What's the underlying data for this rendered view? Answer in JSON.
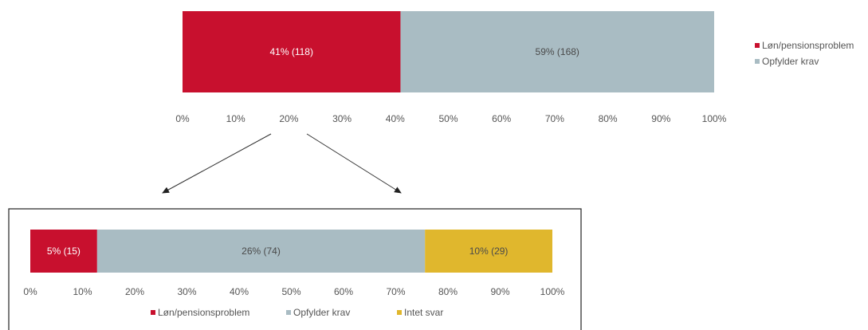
{
  "colors": {
    "red": "#c8102e",
    "gray": "#a9bcc3",
    "gold": "#e0b72d",
    "frame": "#222222",
    "arrow": "#333333"
  },
  "chart_data": [
    {
      "type": "bar",
      "orientation": "horizontal",
      "stacked": true,
      "xlim": [
        0,
        100
      ],
      "tick_labels": [
        "0%",
        "10%",
        "20%",
        "30%",
        "40%",
        "50%",
        "60%",
        "70%",
        "80%",
        "90%",
        "100%"
      ],
      "legend_position": "right",
      "series": [
        {
          "name": "Løn/pensionsproblem",
          "value": 41,
          "label": "41% (118)",
          "color": "#c8102e"
        },
        {
          "name": "Opfylder krav",
          "value": 59,
          "label": "59% (168)",
          "color": "#a9bcc3"
        }
      ]
    },
    {
      "type": "bar",
      "orientation": "horizontal",
      "stacked": true,
      "xlim": [
        0,
        100
      ],
      "tick_labels": [
        "0%",
        "10%",
        "20%",
        "30%",
        "40%",
        "50%",
        "60%",
        "70%",
        "80%",
        "90%",
        "100%"
      ],
      "legend_position": "bottom",
      "series": [
        {
          "name": "Løn/pensionsproblem",
          "value": 12.8,
          "label": "5% (15)",
          "color": "#c8102e"
        },
        {
          "name": "Opfylder krav",
          "value": 62.8,
          "label": "26% (74)",
          "color": "#a9bcc3"
        },
        {
          "name": "Intet svar",
          "value": 24.4,
          "label": "10% (29)",
          "color": "#e0b72d"
        }
      ]
    }
  ]
}
